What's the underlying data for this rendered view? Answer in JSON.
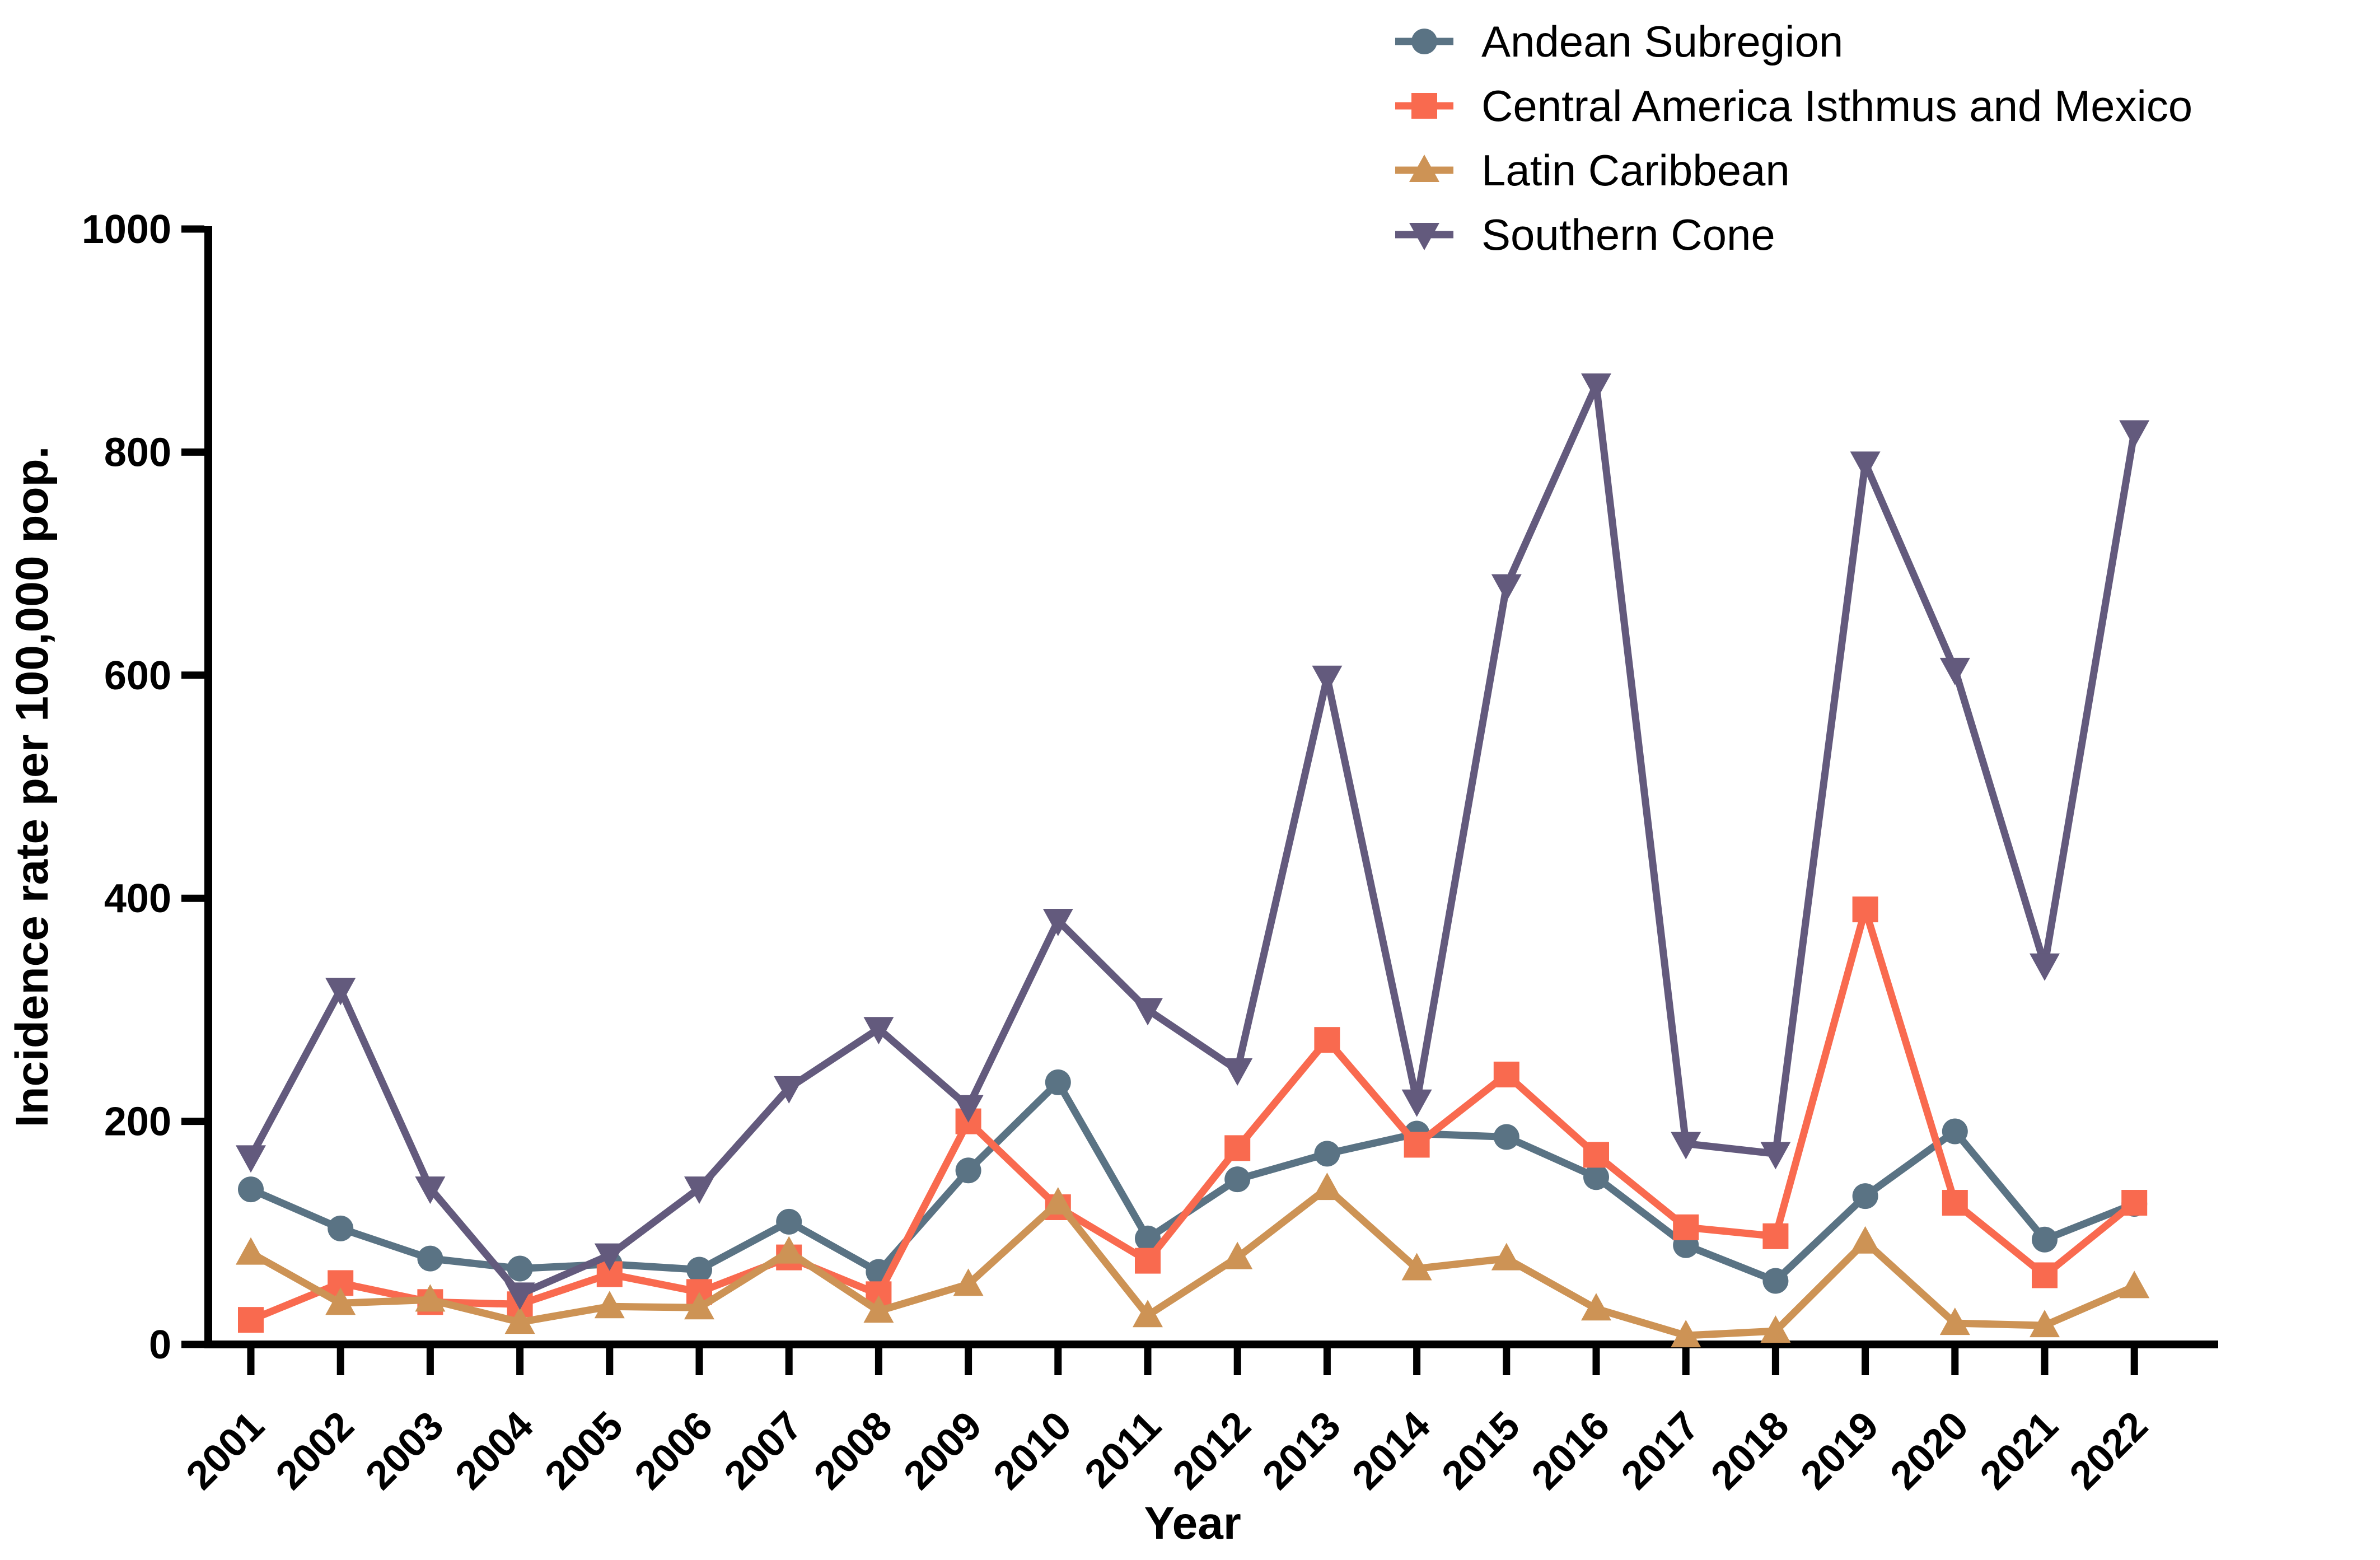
{
  "figure": {
    "xlabel": "Year",
    "ylabel": "Incidence rate per 100,000 pop."
  },
  "chart_data": {
    "type": "line",
    "title": "",
    "xlabel": "Year",
    "ylabel": "Incidence rate per 100,000 pop.",
    "ylim": [
      0,
      1000
    ],
    "yticks": [
      0,
      200,
      400,
      600,
      800,
      1000
    ],
    "grid": false,
    "legend_position": "top-right",
    "categories": [
      "2001",
      "2002",
      "2003",
      "2004",
      "2005",
      "2006",
      "2007",
      "2008",
      "2009",
      "2010",
      "2011",
      "2012",
      "2013",
      "2014",
      "2015",
      "2016",
      "2017",
      "2018",
      "2019",
      "2020",
      "2021",
      "2022"
    ],
    "series": [
      {
        "name": "Andean Subregion",
        "color": "#5a7384",
        "marker": "circle",
        "values": [
          139,
          104,
          77,
          68,
          72,
          67,
          110,
          65,
          156,
          235,
          95,
          148,
          171,
          189,
          186,
          150,
          89,
          57,
          133,
          191,
          94,
          126
        ]
      },
      {
        "name": "Central America Isthmus and Mexico",
        "color": "#f96a4f",
        "marker": "square",
        "values": [
          22,
          55,
          38,
          36,
          63,
          47,
          78,
          45,
          200,
          123,
          75,
          176,
          273,
          179,
          242,
          170,
          105,
          97,
          390,
          127,
          62,
          127
        ]
      },
      {
        "name": "Latin Caribbean",
        "color": "#cd9355",
        "marker": "triangle-up",
        "values": [
          82,
          37,
          40,
          20,
          34,
          33,
          83,
          30,
          54,
          127,
          26,
          78,
          140,
          68,
          77,
          32,
          8,
          12,
          92,
          19,
          17,
          52
        ]
      },
      {
        "name": "Southern Cone",
        "color": "#635a7d",
        "marker": "triangle-down",
        "values": [
          168,
          318,
          140,
          45,
          80,
          140,
          230,
          283,
          213,
          380,
          300,
          246,
          598,
          218,
          680,
          860,
          180,
          171,
          790,
          605,
          340,
          818
        ]
      }
    ]
  }
}
